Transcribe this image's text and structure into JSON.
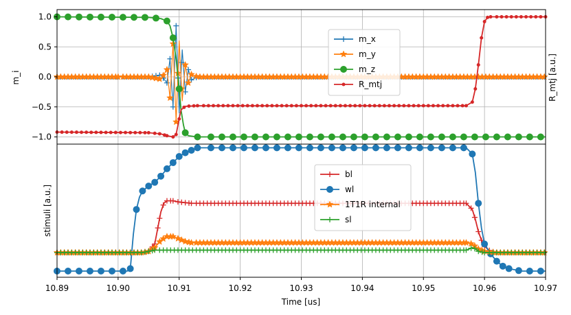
{
  "chart_data": [
    {
      "type": "line",
      "panel": "top",
      "ylabel": "m_i",
      "right_ylabel": "R_mtj [a.u.]",
      "xlim": [
        10.89,
        10.97
      ],
      "ylim": [
        -1.12,
        1.12
      ],
      "yticks": [
        1.0,
        0.5,
        0.0,
        -0.5,
        -1.0
      ],
      "ytick_labels": [
        "1.0",
        "0.5",
        "0.0",
        "−0.5",
        "−1.0"
      ],
      "grid": true,
      "legend_position": "upper-center",
      "series": [
        {
          "name": "m_x",
          "color": "#1f77b4",
          "marker": "plus",
          "points": [
            [
              10.89,
              0.0
            ],
            [
              10.9,
              0.0
            ],
            [
              10.905,
              0.0
            ],
            [
              10.907,
              0.03
            ],
            [
              10.908,
              -0.1
            ],
            [
              10.9085,
              0.3
            ],
            [
              10.909,
              -0.5
            ],
            [
              10.9095,
              0.85
            ],
            [
              10.91,
              -0.6
            ],
            [
              10.9105,
              0.45
            ],
            [
              10.911,
              -0.25
            ],
            [
              10.9115,
              0.12
            ],
            [
              10.912,
              -0.05
            ],
            [
              10.913,
              0.0
            ],
            [
              10.97,
              0.0
            ]
          ]
        },
        {
          "name": "m_y",
          "color": "#ff7f0e",
          "marker": "star",
          "points": [
            [
              10.89,
              0.0
            ],
            [
              10.9,
              0.0
            ],
            [
              10.905,
              0.0
            ],
            [
              10.907,
              -0.04
            ],
            [
              10.908,
              0.12
            ],
            [
              10.9085,
              -0.35
            ],
            [
              10.909,
              0.55
            ],
            [
              10.9095,
              -0.75
            ],
            [
              10.91,
              0.6
            ],
            [
              10.9105,
              -0.4
            ],
            [
              10.911,
              0.2
            ],
            [
              10.9115,
              -0.1
            ],
            [
              10.912,
              0.04
            ],
            [
              10.913,
              0.0
            ],
            [
              10.97,
              0.0
            ]
          ]
        },
        {
          "name": "m_z",
          "color": "#2ca02c",
          "marker": "circle",
          "points": [
            [
              10.89,
              1.0
            ],
            [
              10.905,
              0.99
            ],
            [
              10.907,
              0.97
            ],
            [
              10.908,
              0.93
            ],
            [
              10.9085,
              0.85
            ],
            [
              10.909,
              0.65
            ],
            [
              10.9095,
              0.3
            ],
            [
              10.91,
              -0.2
            ],
            [
              10.9103,
              -0.55
            ],
            [
              10.9107,
              -0.8
            ],
            [
              10.911,
              -0.93
            ],
            [
              10.9115,
              -0.98
            ],
            [
              10.913,
              -1.0
            ],
            [
              10.97,
              -1.0
            ]
          ]
        },
        {
          "name": "R_mtj",
          "color": "#d62728",
          "marker": "dot",
          "points": [
            [
              10.89,
              -0.92
            ],
            [
              10.905,
              -0.93
            ],
            [
              10.907,
              -0.95
            ],
            [
              10.908,
              -0.98
            ],
            [
              10.909,
              -1.0
            ],
            [
              10.9095,
              -0.96
            ],
            [
              10.91,
              -0.7
            ],
            [
              10.9103,
              -0.55
            ],
            [
              10.911,
              -0.49
            ],
            [
              10.913,
              -0.48
            ],
            [
              10.957,
              -0.48
            ],
            [
              10.958,
              -0.42
            ],
            [
              10.9585,
              -0.2
            ],
            [
              10.959,
              0.2
            ],
            [
              10.9595,
              0.65
            ],
            [
              10.96,
              0.92
            ],
            [
              10.9605,
              0.99
            ],
            [
              10.961,
              1.0
            ],
            [
              10.97,
              1.0
            ]
          ]
        }
      ]
    },
    {
      "type": "line",
      "panel": "bottom",
      "ylabel": "stimuli [a.u.]",
      "xlabel": "Time [us]",
      "xlim": [
        10.89,
        10.97
      ],
      "xticks": [
        10.89,
        10.9,
        10.91,
        10.92,
        10.93,
        10.94,
        10.95,
        10.96,
        10.97
      ],
      "xtick_labels": [
        "10.89",
        "10.90",
        "10.91",
        "10.92",
        "10.93",
        "10.94",
        "10.95",
        "10.96",
        "10.97"
      ],
      "ylim": [
        -0.05,
        1.03
      ],
      "grid": true,
      "legend_position": "center",
      "series": [
        {
          "name": "bl",
          "color": "#d62728",
          "marker": "plus",
          "points": [
            [
              10.89,
              0.15
            ],
            [
              10.904,
              0.15
            ],
            [
              10.905,
              0.16
            ],
            [
              10.906,
              0.22
            ],
            [
              10.9065,
              0.35
            ],
            [
              10.907,
              0.48
            ],
            [
              10.9075,
              0.55
            ],
            [
              10.908,
              0.57
            ],
            [
              10.909,
              0.57
            ],
            [
              10.91,
              0.56
            ],
            [
              10.912,
              0.55
            ],
            [
              10.913,
              0.55
            ],
            [
              10.957,
              0.55
            ],
            [
              10.958,
              0.5
            ],
            [
              10.9585,
              0.42
            ],
            [
              10.959,
              0.32
            ],
            [
              10.9595,
              0.25
            ],
            [
              10.96,
              0.2
            ],
            [
              10.961,
              0.16
            ],
            [
              10.962,
              0.15
            ],
            [
              10.97,
              0.15
            ]
          ]
        },
        {
          "name": "wl",
          "color": "#1f77b4",
          "marker": "circle",
          "points": [
            [
              10.89,
              0.0
            ],
            [
              10.9015,
              0.0
            ],
            [
              10.902,
              0.02
            ],
            [
              10.9025,
              0.3
            ],
            [
              10.903,
              0.5
            ],
            [
              10.9035,
              0.6
            ],
            [
              10.904,
              0.65
            ],
            [
              10.905,
              0.69
            ],
            [
              10.906,
              0.72
            ],
            [
              10.907,
              0.77
            ],
            [
              10.908,
              0.83
            ],
            [
              10.909,
              0.88
            ],
            [
              10.91,
              0.93
            ],
            [
              10.911,
              0.96
            ],
            [
              10.912,
              0.98
            ],
            [
              10.913,
              1.0
            ],
            [
              10.957,
              1.0
            ],
            [
              10.958,
              0.95
            ],
            [
              10.9585,
              0.8
            ],
            [
              10.959,
              0.55
            ],
            [
              10.9595,
              0.35
            ],
            [
              10.96,
              0.22
            ],
            [
              10.961,
              0.14
            ],
            [
              10.962,
              0.08
            ],
            [
              10.963,
              0.04
            ],
            [
              10.964,
              0.02
            ],
            [
              10.966,
              0.0
            ],
            [
              10.97,
              0.0
            ]
          ]
        },
        {
          "name": "1T1R internal",
          "color": "#ff7f0e",
          "marker": "star",
          "points": [
            [
              10.89,
              0.15
            ],
            [
              10.904,
              0.15
            ],
            [
              10.905,
              0.16
            ],
            [
              10.906,
              0.19
            ],
            [
              10.907,
              0.25
            ],
            [
              10.908,
              0.28
            ],
            [
              10.909,
              0.28
            ],
            [
              10.91,
              0.26
            ],
            [
              10.911,
              0.24
            ],
            [
              10.912,
              0.23
            ],
            [
              10.913,
              0.23
            ],
            [
              10.957,
              0.23
            ],
            [
              10.958,
              0.22
            ],
            [
              10.9585,
              0.2
            ],
            [
              10.959,
              0.18
            ],
            [
              10.96,
              0.16
            ],
            [
              10.962,
              0.15
            ],
            [
              10.97,
              0.15
            ]
          ]
        },
        {
          "name": "sl",
          "color": "#2ca02c",
          "marker": "plus",
          "points": [
            [
              10.89,
              0.15
            ],
            [
              10.904,
              0.15
            ],
            [
              10.905,
              0.16
            ],
            [
              10.906,
              0.17
            ],
            [
              10.908,
              0.17
            ],
            [
              10.913,
              0.17
            ],
            [
              10.957,
              0.17
            ],
            [
              10.958,
              0.19
            ],
            [
              10.9585,
              0.18
            ],
            [
              10.959,
              0.16
            ],
            [
              10.96,
              0.15
            ],
            [
              10.97,
              0.15
            ]
          ]
        }
      ]
    }
  ]
}
